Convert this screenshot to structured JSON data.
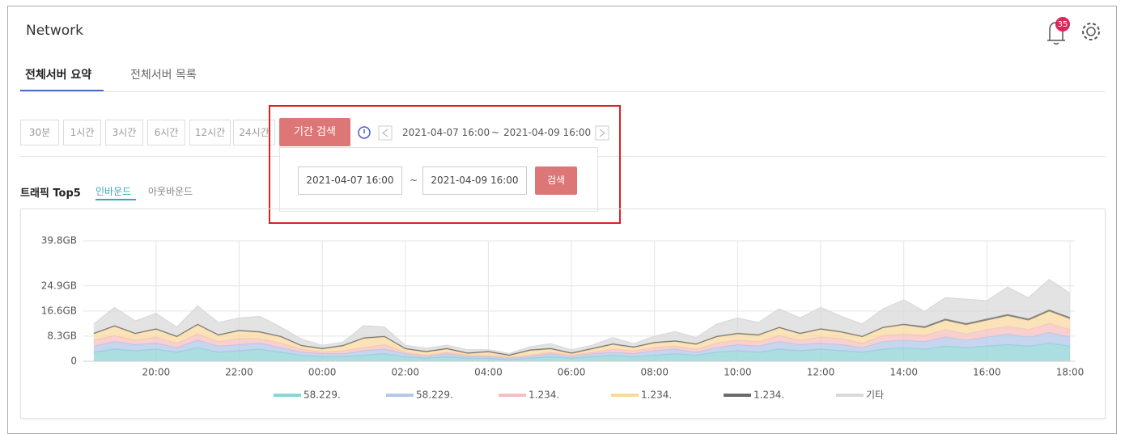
{
  "header": {
    "title": "Network",
    "badge": "35"
  },
  "tabs": [
    "전체서버 요약",
    "전체서버 목록"
  ],
  "time_buttons": [
    "30분",
    "1시간",
    "3시간",
    "6시간",
    "12시간",
    "24시간"
  ],
  "period_button": "기간 검색",
  "range": {
    "start": "2021-04-07 16:00",
    "sep": "~",
    "end": "2021-04-09 16:00"
  },
  "panel": {
    "start": "2021-04-07 16:00",
    "sep": "~",
    "end": "2021-04-09 16:00",
    "search": "검색"
  },
  "section": {
    "title": "트래픽 Top5",
    "tabs": [
      "인바운드",
      "아웃바운드"
    ]
  },
  "chart_data": {
    "type": "stacked-area",
    "x": [
      18.5,
      19,
      19.5,
      20,
      20.5,
      21,
      21.5,
      22,
      22.5,
      23,
      23.5,
      24,
      24.5,
      25,
      25.5,
      26,
      26.5,
      27,
      27.5,
      28,
      28.5,
      29,
      29.5,
      30,
      30.5,
      31,
      31.5,
      32,
      32.5,
      33,
      33.5,
      34,
      34.5,
      35,
      35.5,
      36,
      36.5,
      37,
      37.5,
      38,
      38.5,
      39,
      39.5,
      40,
      40.5,
      41,
      41.5,
      42
    ],
    "xlim": [
      18.25,
      42
    ],
    "xticks": [
      {
        "value": 20,
        "label": "20:00"
      },
      {
        "value": 22,
        "label": "22:00"
      },
      {
        "value": 24,
        "label": "00:00"
      },
      {
        "value": 26,
        "label": "02:00"
      },
      {
        "value": 28,
        "label": "04:00"
      },
      {
        "value": 30,
        "label": "06:00"
      },
      {
        "value": 32,
        "label": "08:00"
      },
      {
        "value": 34,
        "label": "10:00"
      },
      {
        "value": 36,
        "label": "12:00"
      },
      {
        "value": 38,
        "label": "14:00"
      },
      {
        "value": 40,
        "label": "16:00"
      },
      {
        "value": 42,
        "label": "18:00"
      }
    ],
    "ylim": [
      0,
      39.8
    ],
    "yticks": [
      0,
      {
        "value": 8.3,
        "label": "8.3GB"
      },
      {
        "value": 16.6,
        "label": "16.6GB"
      },
      {
        "value": 24.9,
        "label": "24.9GB"
      },
      {
        "value": 39.8,
        "label": "39.8GB"
      }
    ],
    "grid": true,
    "series": [
      {
        "name": "58.229.",
        "color": "#8fd3d6",
        "values": [
          3,
          4,
          3.5,
          4,
          3,
          4.5,
          3,
          3.5,
          4,
          3,
          2,
          1.5,
          1.5,
          2,
          2.5,
          1.5,
          1,
          1.5,
          1,
          1,
          0.5,
          1,
          1.5,
          1,
          1.5,
          2,
          1.5,
          2,
          2.5,
          2,
          3,
          3.5,
          3,
          4,
          3.5,
          4,
          3.5,
          3,
          4,
          4.5,
          4,
          5,
          4.5,
          5,
          5.5,
          5,
          6,
          5
        ]
      },
      {
        "name": "58.229.",
        "color": "#b4c8ea",
        "values": [
          2,
          2.5,
          2,
          2,
          1.5,
          2.5,
          2,
          2,
          2,
          1.5,
          1,
          1,
          1,
          1.5,
          1.5,
          1,
          0.5,
          1,
          0.5,
          0.5,
          0.5,
          0.5,
          1,
          0.5,
          1,
          1,
          1,
          1.5,
          1.5,
          1,
          1.5,
          2,
          2,
          2.5,
          2,
          2,
          2,
          1.5,
          2.5,
          2.5,
          2.5,
          3,
          2.5,
          3,
          3.5,
          3,
          3.5,
          3
        ]
      },
      {
        "name": "1.234.",
        "color": "#f5c0c0",
        "values": [
          2,
          2,
          1.5,
          2,
          1.5,
          2,
          1.5,
          2,
          1.5,
          1.5,
          1,
          0.5,
          1,
          1,
          1.5,
          0.5,
          0.5,
          0.5,
          0.5,
          0.5,
          0.3,
          0.5,
          0.5,
          0.5,
          0.5,
          1,
          1,
          1,
          1,
          1,
          1.5,
          1.5,
          1.5,
          2,
          1.5,
          2,
          2,
          1.5,
          2,
          2,
          2,
          2.5,
          2,
          2.5,
          2.5,
          2.5,
          3,
          2.5
        ]
      },
      {
        "name": "1.234.",
        "color": "#f8d9a0",
        "values": [
          2,
          3,
          2,
          2.5,
          2,
          3,
          2,
          2.5,
          2,
          2,
          1,
          1,
          1.5,
          3,
          2.5,
          1,
          1,
          1,
          0.5,
          1,
          0.5,
          1.5,
          1,
          0.5,
          1,
          1.5,
          1,
          1.5,
          1.5,
          1.5,
          2,
          2,
          2,
          2.5,
          2,
          2.5,
          2,
          2,
          2.5,
          3,
          2.5,
          3,
          3,
          3,
          3.5,
          3,
          4,
          3.5
        ]
      },
      {
        "name": "1.234.",
        "color": "#6b6b6b",
        "values": [
          0.3,
          0.3,
          0.3,
          0.3,
          0.3,
          0.3,
          0.3,
          0.3,
          0.3,
          0.3,
          0.3,
          0.3,
          0.3,
          0.3,
          0.3,
          0.3,
          0.3,
          0.3,
          0.3,
          0.3,
          0.3,
          0.3,
          0.3,
          0.3,
          0.3,
          0.3,
          0.3,
          0.3,
          0.3,
          0.3,
          0.3,
          0.3,
          0.3,
          0.3,
          0.3,
          0.3,
          0.3,
          0.3,
          0.3,
          0.3,
          0.5,
          0.5,
          0.5,
          0.5,
          0.5,
          0.5,
          0.5,
          0.5
        ]
      },
      {
        "name": "기타",
        "color": "#d9d9d9",
        "values": [
          3,
          6,
          4,
          5,
          3,
          6,
          4,
          4,
          5,
          3,
          2,
          1,
          1,
          4,
          3,
          1,
          1,
          1,
          1,
          0.5,
          0.5,
          1,
          1.5,
          1,
          1,
          2,
          1,
          2,
          3,
          2,
          4,
          5,
          4,
          6,
          5,
          7,
          5,
          4,
          6,
          8,
          5,
          7,
          8,
          6,
          9,
          7,
          10,
          8
        ]
      }
    ]
  }
}
